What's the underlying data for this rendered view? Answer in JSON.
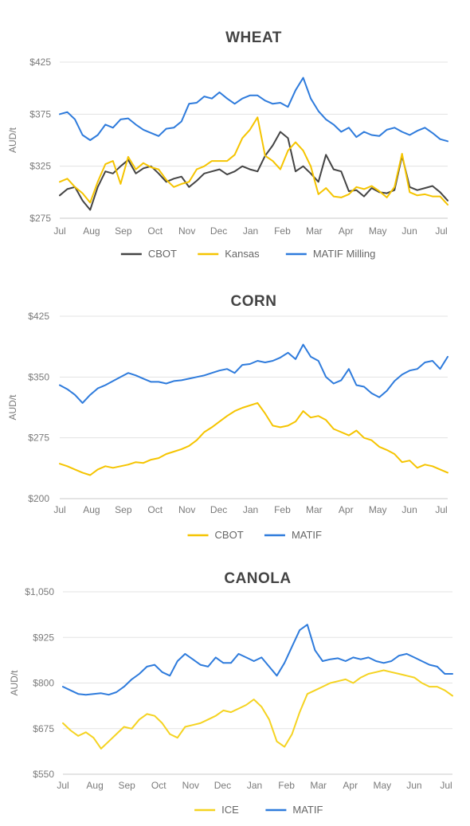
{
  "chart_data": [
    {
      "type": "line",
      "title": "WHEAT",
      "ylabel": "AUD/t",
      "ylim": [
        275,
        425
      ],
      "yticks": [
        "$425",
        "$375",
        "$325",
        "$275"
      ],
      "ytick_values": [
        425,
        375,
        325,
        275
      ],
      "months": [
        "Jul",
        "Aug",
        "Sep",
        "Oct",
        "Nov",
        "Dec",
        "Jan",
        "Feb",
        "Mar",
        "Apr",
        "May",
        "Jun",
        "Jul"
      ],
      "grid": true,
      "legend": "bottom",
      "series": [
        {
          "name": "CBOT",
          "color": "#444444",
          "values": [
            297,
            303,
            305,
            292,
            283,
            305,
            320,
            318,
            325,
            331,
            318,
            323,
            325,
            318,
            310,
            313,
            315,
            305,
            311,
            318,
            320,
            322,
            317,
            320,
            325,
            322,
            320,
            335,
            345,
            358,
            352,
            320,
            325,
            318,
            310,
            336,
            322,
            320,
            301,
            302,
            296,
            304,
            300,
            299,
            302,
            335,
            305,
            302,
            304,
            306,
            300,
            292
          ]
        },
        {
          "name": "Kansas",
          "color": "#F5C400",
          "values": [
            310,
            313,
            305,
            299,
            290,
            310,
            327,
            330,
            308,
            334,
            322,
            328,
            324,
            322,
            312,
            305,
            308,
            310,
            322,
            325,
            330,
            330,
            330,
            336,
            352,
            360,
            372,
            335,
            330,
            322,
            340,
            348,
            340,
            325,
            298,
            304,
            296,
            295,
            298,
            305,
            303,
            306,
            301,
            295,
            305,
            337,
            300,
            297,
            298,
            296,
            296,
            288
          ]
        },
        {
          "name": "MATIF Milling",
          "color": "#2E7BDC",
          "values": [
            375,
            377,
            370,
            355,
            350,
            355,
            365,
            362,
            370,
            371,
            365,
            360,
            357,
            354,
            361,
            362,
            368,
            385,
            386,
            392,
            390,
            396,
            390,
            385,
            390,
            393,
            393,
            388,
            385,
            386,
            382,
            398,
            410,
            390,
            378,
            370,
            365,
            358,
            362,
            353,
            358,
            355,
            354,
            360,
            362,
            358,
            355,
            359,
            362,
            357,
            351,
            349
          ]
        }
      ]
    },
    {
      "type": "line",
      "title": "CORN",
      "ylabel": "AUD/t",
      "ylim": [
        200,
        425
      ],
      "yticks": [
        "$425",
        "$350",
        "$275",
        "$200"
      ],
      "ytick_values": [
        425,
        350,
        275,
        200
      ],
      "months": [
        "Jul",
        "Aug",
        "Sep",
        "Oct",
        "Nov",
        "Dec",
        "Jan",
        "Feb",
        "Mar",
        "Apr",
        "May",
        "Jun",
        "Jul"
      ],
      "grid": true,
      "legend": "bottom",
      "series": [
        {
          "name": "CBOT",
          "color": "#F5C400",
          "values": [
            243,
            240,
            236,
            232,
            229,
            236,
            240,
            238,
            240,
            242,
            245,
            244,
            248,
            250,
            255,
            258,
            261,
            265,
            272,
            282,
            288,
            295,
            302,
            308,
            312,
            315,
            318,
            305,
            290,
            288,
            290,
            295,
            308,
            300,
            302,
            297,
            286,
            282,
            278,
            284,
            275,
            272,
            264,
            260,
            255,
            245,
            247,
            238,
            242,
            240,
            236,
            232
          ]
        },
        {
          "name": "MATIF",
          "color": "#2E7BDC",
          "values": [
            340,
            335,
            328,
            318,
            328,
            336,
            340,
            345,
            350,
            355,
            352,
            348,
            344,
            344,
            342,
            345,
            346,
            348,
            350,
            352,
            355,
            358,
            360,
            355,
            365,
            366,
            370,
            368,
            370,
            374,
            380,
            372,
            390,
            375,
            370,
            350,
            342,
            346,
            360,
            340,
            338,
            330,
            325,
            333,
            345,
            353,
            358,
            360,
            368,
            370,
            360,
            375
          ]
        }
      ]
    },
    {
      "type": "line",
      "title": "CANOLA",
      "ylabel": "AUD/t",
      "ylim": [
        550,
        1050
      ],
      "yticks": [
        "$1,050",
        "$925",
        "$800",
        "$675",
        "$550"
      ],
      "ytick_values": [
        1050,
        925,
        800,
        675,
        550
      ],
      "months": [
        "Jul",
        "Aug",
        "Sep",
        "Oct",
        "Nov",
        "Dec",
        "Jan",
        "Feb",
        "Mar",
        "Apr",
        "May",
        "Jun",
        "Jul"
      ],
      "grid": true,
      "legend": "bottom",
      "series": [
        {
          "name": "ICE",
          "color": "#F5D321",
          "values": [
            690,
            670,
            655,
            665,
            650,
            620,
            640,
            660,
            680,
            675,
            700,
            715,
            710,
            690,
            660,
            650,
            680,
            685,
            690,
            700,
            710,
            725,
            720,
            730,
            740,
            755,
            735,
            700,
            640,
            625,
            660,
            720,
            770,
            780,
            790,
            800,
            805,
            810,
            800,
            815,
            825,
            830,
            835,
            830,
            825,
            820,
            815,
            800,
            790,
            790,
            780,
            765
          ]
        },
        {
          "name": "MATIF",
          "color": "#2E7BDC",
          "values": [
            790,
            780,
            770,
            768,
            770,
            772,
            768,
            775,
            790,
            810,
            825,
            845,
            850,
            830,
            820,
            860,
            880,
            865,
            850,
            845,
            870,
            855,
            855,
            880,
            870,
            860,
            870,
            845,
            820,
            855,
            900,
            945,
            960,
            890,
            860,
            865,
            868,
            860,
            870,
            865,
            870,
            860,
            855,
            860,
            875,
            880,
            870,
            860,
            850,
            845,
            825,
            825
          ]
        }
      ]
    }
  ]
}
